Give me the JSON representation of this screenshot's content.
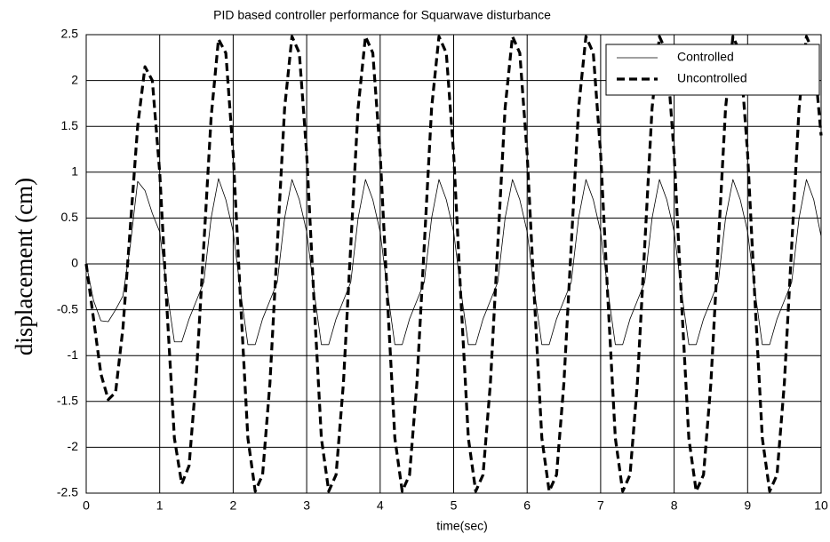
{
  "chart_data": {
    "type": "line",
    "title": "PID based controller performance for Squarwave disturbance",
    "xlabel": "time(sec)",
    "ylabel": "displacement (cm)",
    "x": [
      0,
      0.1,
      0.2,
      0.3,
      0.4,
      0.5,
      0.6,
      0.7,
      0.8,
      0.9,
      1,
      1.1,
      1.2,
      1.3,
      1.4,
      1.5,
      1.6,
      1.7,
      1.8,
      1.9,
      2,
      2.1,
      2.2,
      2.3,
      2.4,
      2.5,
      2.6,
      2.7,
      2.8,
      2.9,
      3,
      3.1,
      3.2,
      3.3,
      3.4,
      3.5,
      3.6,
      3.7,
      3.8,
      3.9,
      4,
      4.1,
      4.2,
      4.3,
      4.4,
      4.5,
      4.6,
      4.7,
      4.8,
      4.9,
      5,
      5.1,
      5.2,
      5.3,
      5.4,
      5.5,
      5.6,
      5.7,
      5.8,
      5.9,
      6,
      6.1,
      6.2,
      6.3,
      6.4,
      6.5,
      6.6,
      6.7,
      6.8,
      6.9,
      7,
      7.1,
      7.2,
      7.3,
      7.4,
      7.5,
      7.6,
      7.7,
      7.8,
      7.9,
      8,
      8.1,
      8.2,
      8.3,
      8.4,
      8.5,
      8.6,
      8.7,
      8.8,
      8.9,
      9,
      9.1,
      9.2,
      9.3,
      9.4,
      9.5,
      9.6,
      9.7,
      9.8,
      9.9,
      10
    ],
    "series": [
      {
        "name": "Controlled",
        "color": "#000000",
        "style": "solid",
        "values": [
          0,
          -0.4,
          -0.62,
          -0.63,
          -0.5,
          -0.35,
          0.2,
          0.9,
          0.8,
          0.55,
          0.35,
          -0.3,
          -0.85,
          -0.85,
          -0.6,
          -0.4,
          -0.2,
          0.5,
          0.93,
          0.7,
          0.35,
          -0.3,
          -0.88,
          -0.88,
          -0.6,
          -0.4,
          -0.2,
          0.5,
          0.92,
          0.7,
          0.35,
          -0.3,
          -0.88,
          -0.88,
          -0.6,
          -0.4,
          -0.2,
          0.5,
          0.92,
          0.7,
          0.35,
          -0.3,
          -0.88,
          -0.88,
          -0.6,
          -0.4,
          -0.2,
          0.5,
          0.92,
          0.7,
          0.35,
          -0.3,
          -0.88,
          -0.88,
          -0.6,
          -0.4,
          -0.2,
          0.5,
          0.92,
          0.7,
          0.35,
          -0.3,
          -0.88,
          -0.88,
          -0.6,
          -0.4,
          -0.2,
          0.5,
          0.92,
          0.7,
          0.35,
          -0.3,
          -0.88,
          -0.88,
          -0.6,
          -0.4,
          -0.2,
          0.5,
          0.92,
          0.7,
          0.35,
          -0.3,
          -0.88,
          -0.88,
          -0.6,
          -0.4,
          -0.2,
          0.5,
          0.92,
          0.7,
          0.35,
          -0.3,
          -0.88,
          -0.88,
          -0.6,
          -0.4,
          -0.2,
          0.5,
          0.92,
          0.7,
          0.3
        ]
      },
      {
        "name": "Uncontrolled",
        "color": "#000000",
        "style": "dashed",
        "values": [
          0,
          -0.6,
          -1.2,
          -1.48,
          -1.4,
          -0.7,
          0.4,
          1.5,
          2.15,
          2.0,
          1.0,
          -0.5,
          -1.9,
          -2.4,
          -2.2,
          -1.2,
          0.2,
          1.6,
          2.45,
          2.3,
          1.2,
          -0.4,
          -1.9,
          -2.48,
          -2.3,
          -1.3,
          0.2,
          1.7,
          2.48,
          2.3,
          1.2,
          -0.4,
          -1.9,
          -2.48,
          -2.3,
          -1.3,
          0.2,
          1.7,
          2.48,
          2.3,
          1.2,
          -0.4,
          -1.9,
          -2.48,
          -2.3,
          -1.3,
          0.2,
          1.7,
          2.48,
          2.3,
          1.2,
          -0.4,
          -1.9,
          -2.48,
          -2.3,
          -1.3,
          0.2,
          1.7,
          2.48,
          2.3,
          1.2,
          -0.4,
          -1.9,
          -2.48,
          -2.3,
          -1.3,
          0.2,
          1.7,
          2.48,
          2.3,
          1.2,
          -0.4,
          -1.9,
          -2.48,
          -2.3,
          -1.3,
          0.2,
          1.7,
          2.48,
          2.3,
          1.2,
          -0.4,
          -1.9,
          -2.48,
          -2.3,
          -1.3,
          0.2,
          1.7,
          2.48,
          2.3,
          1.2,
          -0.4,
          -1.9,
          -2.48,
          -2.3,
          -1.3,
          0.2,
          1.7,
          2.48,
          2.3,
          1.4
        ]
      }
    ],
    "xlim": [
      0,
      10
    ],
    "xticks": [
      0,
      1,
      2,
      3,
      4,
      5,
      6,
      7,
      8,
      9,
      10
    ],
    "ylim": [
      -2.5,
      2.5
    ],
    "yticks": [
      -2.5,
      -2,
      -1.5,
      -1,
      -0.5,
      0,
      0.5,
      1,
      1.5,
      2,
      2.5
    ],
    "grid": true,
    "legend": "upper right"
  }
}
